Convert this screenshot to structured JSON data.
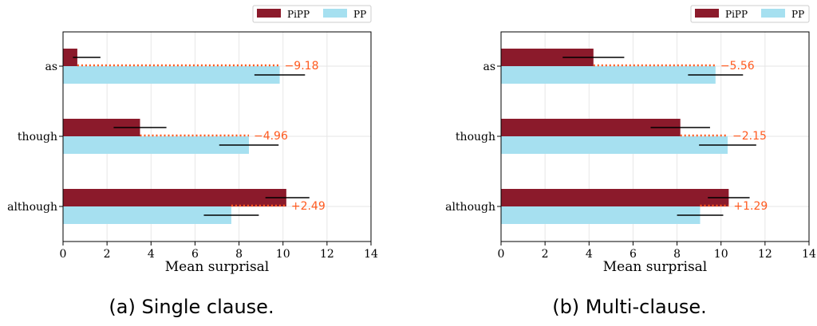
{
  "colors": {
    "pipp": "#8b1a2b",
    "pp": "#a6e0f0",
    "diff": "#ff5a1f",
    "grid": "#e6e6e6"
  },
  "chart_data": [
    {
      "type": "bar",
      "orientation": "horizontal",
      "caption": "(a) Single clause.",
      "xlabel": "Mean surprisal",
      "xlim": [
        0,
        14
      ],
      "xticks": [
        "0",
        "2",
        "4",
        "6",
        "8",
        "10",
        "12",
        "14"
      ],
      "categories": [
        "as",
        "though",
        "although"
      ],
      "series": [
        {
          "name": "PiPP",
          "values": [
            0.65,
            3.5,
            10.15
          ],
          "err_lo": [
            0.45,
            2.3,
            9.2
          ],
          "err_hi": [
            1.7,
            4.7,
            11.2
          ]
        },
        {
          "name": "PP",
          "values": [
            9.85,
            8.45,
            7.65
          ],
          "err_lo": [
            8.7,
            7.1,
            6.4
          ],
          "err_hi": [
            11.0,
            9.8,
            8.9
          ]
        }
      ],
      "differences": [
        "−9.18",
        "−4.96",
        "+2.49"
      ],
      "legend": "top-right"
    },
    {
      "type": "bar",
      "orientation": "horizontal",
      "caption": "(b) Multi-clause.",
      "xlabel": "Mean surprisal",
      "xlim": [
        0,
        14
      ],
      "xticks": [
        "0",
        "2",
        "4",
        "6",
        "8",
        "10",
        "12",
        "14"
      ],
      "categories": [
        "as",
        "though",
        "although"
      ],
      "series": [
        {
          "name": "PiPP",
          "values": [
            4.2,
            8.15,
            10.35
          ],
          "err_lo": [
            2.8,
            6.8,
            9.4
          ],
          "err_hi": [
            5.6,
            9.5,
            11.3
          ]
        },
        {
          "name": "PP",
          "values": [
            9.75,
            10.3,
            9.05
          ],
          "err_lo": [
            8.5,
            9.0,
            8.0
          ],
          "err_hi": [
            11.0,
            11.6,
            10.1
          ]
        }
      ],
      "differences": [
        "−5.56",
        "−2.15",
        "+1.29"
      ],
      "legend": "top-right"
    }
  ]
}
